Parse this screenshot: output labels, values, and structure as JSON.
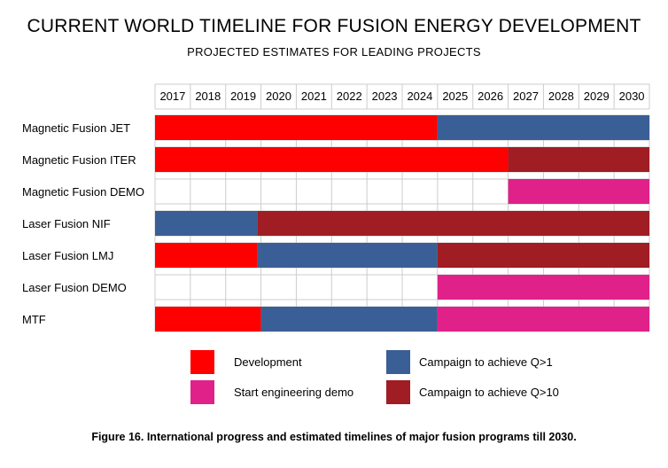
{
  "title": "CURRENT WORLD TIMELINE FOR FUSION ENERGY DEVELOPMENT",
  "subtitle": "PROJECTED ESTIMATES FOR LEADING PROJECTS",
  "caption": "Figure 16. International progress and estimated timelines of major fusion programs till 2030.",
  "colors": {
    "development": "#ff0000",
    "campaign_q1": "#3a5f96",
    "engineering_demo": "#e0218a",
    "campaign_q10": "#a01d23",
    "grid": "#cccccc"
  },
  "legend": [
    {
      "label": "Development",
      "color_key": "development"
    },
    {
      "label": "Campaign to achieve Q>1",
      "color_key": "campaign_q1"
    },
    {
      "label": "Start engineering demo",
      "color_key": "engineering_demo"
    },
    {
      "label": "Campaign to achieve Q>10",
      "color_key": "campaign_q10"
    }
  ],
  "chart_data": {
    "type": "bar",
    "x_axis": {
      "tick_labels": [
        "2017",
        "2018",
        "2019",
        "2020",
        "2021",
        "2022",
        "2023",
        "2024",
        "2025",
        "2026",
        "2027",
        "2028",
        "2029",
        "2030"
      ],
      "range": [
        2017,
        2031
      ]
    },
    "grid": true,
    "legend_position": "bottom",
    "rows": [
      {
        "label": "Magnetic Fusion JET",
        "segments": [
          {
            "phase": "development",
            "start": 2017,
            "end": 2025
          },
          {
            "phase": "campaign_q1",
            "start": 2025,
            "end": 2031
          }
        ]
      },
      {
        "label": "Magnetic Fusion ITER",
        "segments": [
          {
            "phase": "development",
            "start": 2017,
            "end": 2027
          },
          {
            "phase": "campaign_q10",
            "start": 2027,
            "end": 2031
          }
        ]
      },
      {
        "label": "Magnetic Fusion DEMO",
        "segments": [
          {
            "phase": "engineering_demo",
            "start": 2027,
            "end": 2031
          }
        ]
      },
      {
        "label": "Laser Fusion NIF",
        "segments": [
          {
            "phase": "campaign_q1",
            "start": 2017,
            "end": 2019.9
          },
          {
            "phase": "campaign_q10",
            "start": 2019.9,
            "end": 2031
          }
        ]
      },
      {
        "label": "Laser Fusion LMJ",
        "segments": [
          {
            "phase": "development",
            "start": 2017,
            "end": 2019.9
          },
          {
            "phase": "campaign_q1",
            "start": 2019.9,
            "end": 2025
          },
          {
            "phase": "campaign_q10",
            "start": 2025,
            "end": 2031
          }
        ]
      },
      {
        "label": "Laser Fusion DEMO",
        "segments": [
          {
            "phase": "engineering_demo",
            "start": 2025,
            "end": 2031
          }
        ]
      },
      {
        "label": "MTF",
        "segments": [
          {
            "phase": "development",
            "start": 2017,
            "end": 2020
          },
          {
            "phase": "campaign_q1",
            "start": 2020,
            "end": 2025
          },
          {
            "phase": "engineering_demo",
            "start": 2025,
            "end": 2031
          }
        ]
      }
    ]
  }
}
